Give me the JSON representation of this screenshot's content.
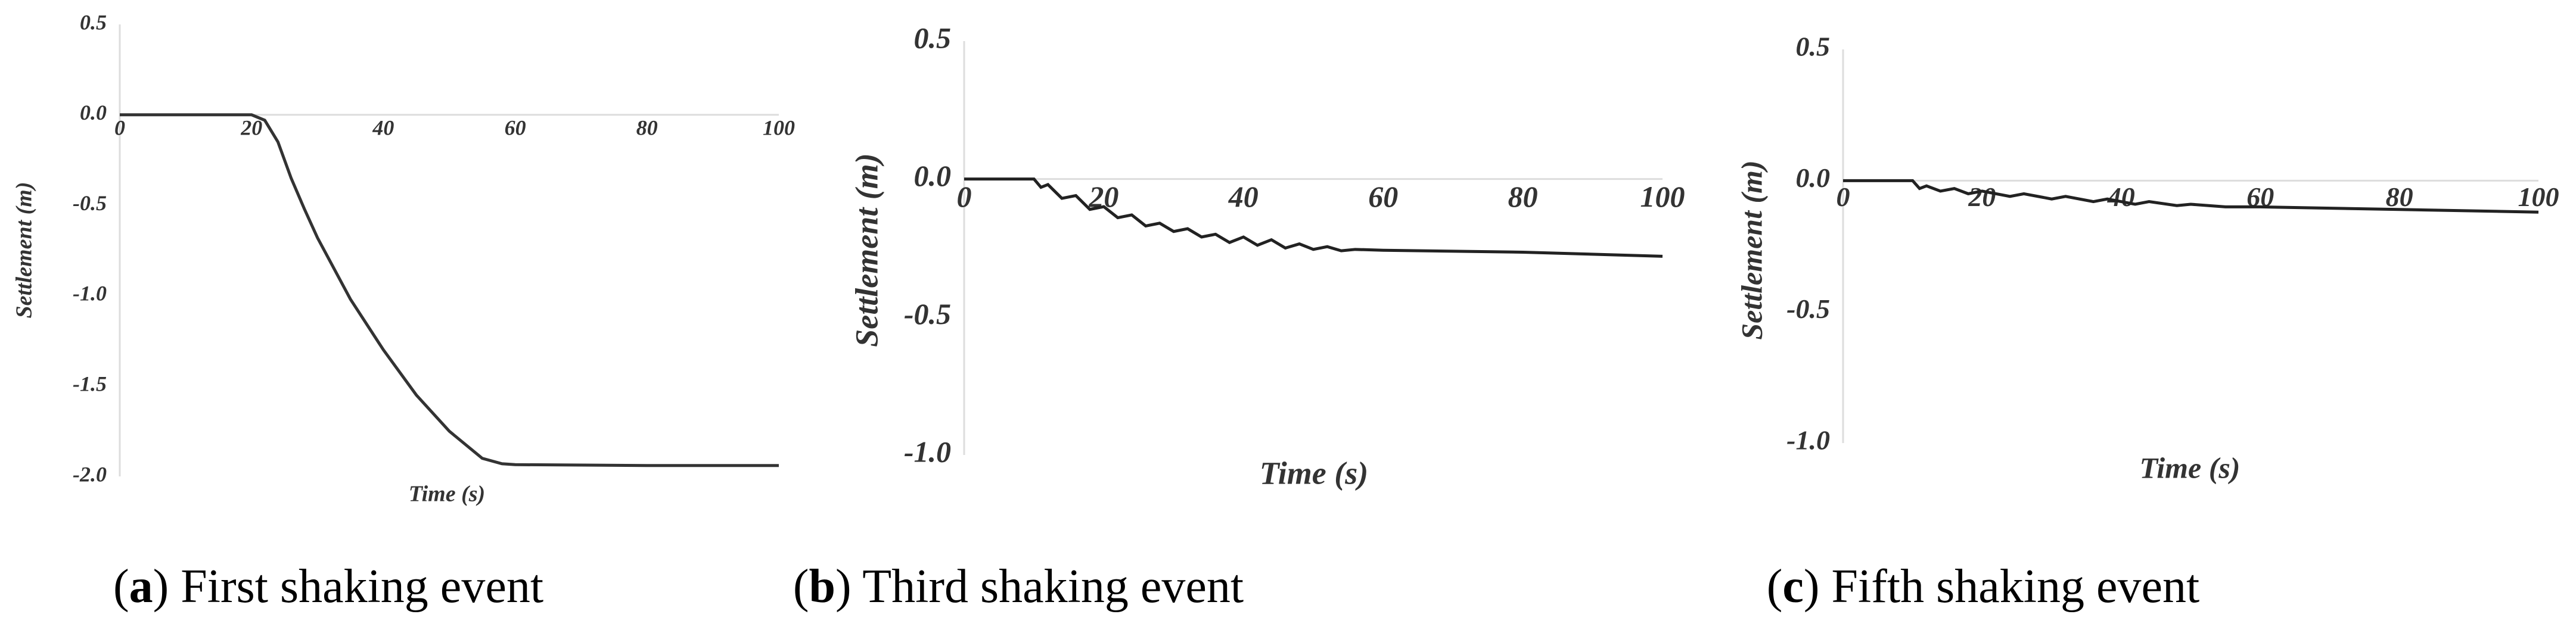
{
  "chart_data": [
    {
      "type": "line",
      "xlabel": "Time (s)",
      "ylabel": "Settlement (m)",
      "caption_parts": [
        "(",
        "a",
        ") First shaking event"
      ],
      "xlim": [
        0,
        100
      ],
      "ylim": [
        -2.0,
        0.5
      ],
      "xticks": [
        0,
        20,
        40,
        60,
        80,
        100
      ],
      "yticks": [
        {
          "value": -2.0,
          "label": "-2.0"
        },
        {
          "value": -1.5,
          "label": "-1.5"
        },
        {
          "value": -1.0,
          "label": "-1.0"
        },
        {
          "value": -0.5,
          "label": "-0.5"
        },
        {
          "value": 0,
          "label": "0.0"
        },
        {
          "value": 0.5,
          "label": "0.5"
        }
      ],
      "color": "#333333",
      "x": [
        0,
        20,
        22,
        24,
        26,
        28,
        30,
        35,
        40,
        45,
        50,
        55,
        58,
        60,
        80,
        100
      ],
      "values": [
        0,
        0,
        -0.03,
        -0.15,
        -0.35,
        -0.52,
        -0.68,
        -1.02,
        -1.3,
        -1.55,
        -1.75,
        -1.9,
        -1.93,
        -1.935,
        -1.94,
        -1.94
      ]
    },
    {
      "type": "line",
      "xlabel": "Time (s)",
      "ylabel": "Settlement (m)",
      "caption_parts": [
        "(",
        "b",
        ") Third shaking event"
      ],
      "xlim": [
        0,
        100
      ],
      "ylim": [
        -1.0,
        0.5
      ],
      "xticks": [
        0,
        20,
        40,
        60,
        80,
        100
      ],
      "yticks": [
        {
          "value": -1.0,
          "label": "-1.0"
        },
        {
          "value": -0.5,
          "label": "-0.5"
        },
        {
          "value": 0,
          "label": "0.0"
        },
        {
          "value": 0.5,
          "label": "0.5"
        }
      ],
      "color": "#222222",
      "x": [
        0,
        10,
        11,
        12,
        14,
        16,
        18,
        20,
        22,
        24,
        26,
        28,
        30,
        32,
        34,
        36,
        38,
        40,
        42,
        44,
        46,
        48,
        50,
        52,
        54,
        56,
        60,
        80,
        100
      ],
      "values": [
        0,
        0,
        -0.03,
        -0.02,
        -0.07,
        -0.06,
        -0.11,
        -0.1,
        -0.14,
        -0.13,
        -0.17,
        -0.16,
        -0.19,
        -0.18,
        -0.21,
        -0.2,
        -0.23,
        -0.21,
        -0.24,
        -0.22,
        -0.25,
        -0.235,
        -0.255,
        -0.245,
        -0.26,
        -0.255,
        -0.258,
        -0.265,
        -0.28
      ]
    },
    {
      "type": "line",
      "xlabel": "Time (s)",
      "ylabel": "Settlement (m)",
      "caption_parts": [
        "(",
        "c",
        ") Fifth shaking event"
      ],
      "xlim": [
        0,
        100
      ],
      "ylim": [
        -1.0,
        0.5
      ],
      "xticks": [
        0,
        20,
        40,
        60,
        80,
        100
      ],
      "yticks": [
        {
          "value": -1.0,
          "label": "-1.0"
        },
        {
          "value": -0.5,
          "label": "-0.5"
        },
        {
          "value": 0,
          "label": "0.0"
        },
        {
          "value": 0.5,
          "label": "0.5"
        }
      ],
      "color": "#222222",
      "x": [
        0,
        10,
        11,
        12,
        14,
        16,
        18,
        20,
        24,
        26,
        30,
        32,
        36,
        38,
        42,
        44,
        48,
        50,
        55,
        60,
        80,
        100
      ],
      "values": [
        0,
        0,
        -0.03,
        -0.02,
        -0.04,
        -0.03,
        -0.05,
        -0.04,
        -0.06,
        -0.05,
        -0.07,
        -0.06,
        -0.08,
        -0.07,
        -0.09,
        -0.08,
        -0.095,
        -0.09,
        -0.1,
        -0.1,
        -0.11,
        -0.12
      ]
    }
  ]
}
